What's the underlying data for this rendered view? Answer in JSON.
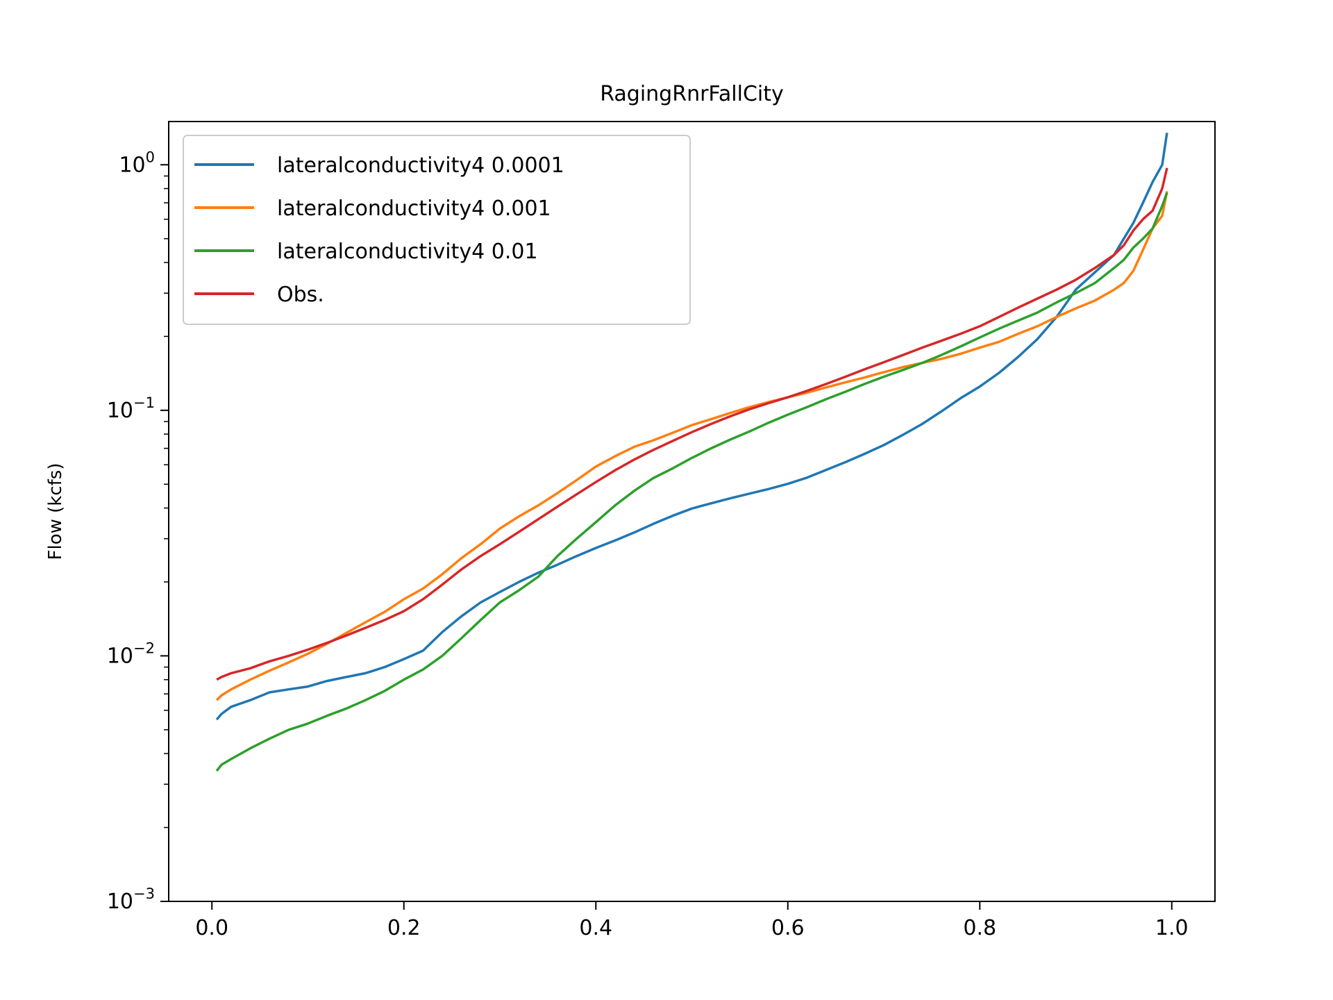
{
  "chart_data": {
    "type": "line",
    "title": "RagingRnrFallCity",
    "xlabel": "",
    "ylabel": "Flow (kcfs)",
    "xlim": [
      -0.045,
      1.045
    ],
    "ylim": [
      0.001,
      1.5
    ],
    "yscale": "log",
    "grid": false,
    "legend_position": "upper-left",
    "x_ticks": [
      {
        "value": 0.0,
        "label": "0.0"
      },
      {
        "value": 0.2,
        "label": "0.2"
      },
      {
        "value": 0.4,
        "label": "0.4"
      },
      {
        "value": 0.6,
        "label": "0.6"
      },
      {
        "value": 0.8,
        "label": "0.8"
      },
      {
        "value": 1.0,
        "label": "1.0"
      }
    ],
    "y_ticks": [
      {
        "value": 1.0,
        "base": "10",
        "exponent": "0"
      },
      {
        "value": 0.1,
        "base": "10",
        "exponent": "−1"
      },
      {
        "value": 0.01,
        "base": "10",
        "exponent": "−2"
      },
      {
        "value": 0.001,
        "base": "10",
        "exponent": "−3"
      }
    ],
    "series": [
      {
        "name": "lateralconductivity4 0.0001",
        "color": "#1f77b4",
        "points": [
          [
            0.005,
            0.0055
          ],
          [
            0.01,
            0.0058
          ],
          [
            0.02,
            0.0062
          ],
          [
            0.04,
            0.0066
          ],
          [
            0.06,
            0.0071
          ],
          [
            0.08,
            0.0073
          ],
          [
            0.1,
            0.0075
          ],
          [
            0.12,
            0.0079
          ],
          [
            0.14,
            0.0082
          ],
          [
            0.16,
            0.0085
          ],
          [
            0.18,
            0.009
          ],
          [
            0.2,
            0.0097
          ],
          [
            0.22,
            0.0105
          ],
          [
            0.24,
            0.0125
          ],
          [
            0.26,
            0.0145
          ],
          [
            0.28,
            0.0165
          ],
          [
            0.3,
            0.0182
          ],
          [
            0.32,
            0.02
          ],
          [
            0.34,
            0.0218
          ],
          [
            0.36,
            0.0235
          ],
          [
            0.38,
            0.0255
          ],
          [
            0.4,
            0.0275
          ],
          [
            0.42,
            0.0295
          ],
          [
            0.44,
            0.0318
          ],
          [
            0.46,
            0.0345
          ],
          [
            0.48,
            0.0372
          ],
          [
            0.5,
            0.0398
          ],
          [
            0.52,
            0.0418
          ],
          [
            0.54,
            0.0438
          ],
          [
            0.56,
            0.0458
          ],
          [
            0.58,
            0.0478
          ],
          [
            0.6,
            0.0502
          ],
          [
            0.62,
            0.0532
          ],
          [
            0.64,
            0.0572
          ],
          [
            0.66,
            0.0615
          ],
          [
            0.68,
            0.0665
          ],
          [
            0.7,
            0.0722
          ],
          [
            0.72,
            0.0795
          ],
          [
            0.74,
            0.088
          ],
          [
            0.76,
            0.099
          ],
          [
            0.78,
            0.112
          ],
          [
            0.8,
            0.125
          ],
          [
            0.82,
            0.142
          ],
          [
            0.84,
            0.165
          ],
          [
            0.86,
            0.195
          ],
          [
            0.88,
            0.24
          ],
          [
            0.9,
            0.31
          ],
          [
            0.92,
            0.365
          ],
          [
            0.94,
            0.43
          ],
          [
            0.95,
            0.5
          ],
          [
            0.96,
            0.58
          ],
          [
            0.97,
            0.7
          ],
          [
            0.98,
            0.85
          ],
          [
            0.99,
            1.0
          ],
          [
            0.995,
            1.35
          ]
        ]
      },
      {
        "name": "lateralconductivity4 0.001",
        "color": "#ff7f0e",
        "points": [
          [
            0.005,
            0.0066
          ],
          [
            0.01,
            0.0069
          ],
          [
            0.02,
            0.0073
          ],
          [
            0.04,
            0.008
          ],
          [
            0.06,
            0.0087
          ],
          [
            0.08,
            0.0094
          ],
          [
            0.1,
            0.0102
          ],
          [
            0.12,
            0.0112
          ],
          [
            0.14,
            0.0124
          ],
          [
            0.16,
            0.0137
          ],
          [
            0.18,
            0.0151
          ],
          [
            0.2,
            0.017
          ],
          [
            0.22,
            0.0188
          ],
          [
            0.24,
            0.0215
          ],
          [
            0.26,
            0.025
          ],
          [
            0.28,
            0.0285
          ],
          [
            0.3,
            0.033
          ],
          [
            0.32,
            0.037
          ],
          [
            0.34,
            0.041
          ],
          [
            0.36,
            0.046
          ],
          [
            0.38,
            0.052
          ],
          [
            0.4,
            0.059
          ],
          [
            0.42,
            0.065
          ],
          [
            0.44,
            0.071
          ],
          [
            0.46,
            0.0755
          ],
          [
            0.48,
            0.081
          ],
          [
            0.5,
            0.087
          ],
          [
            0.52,
            0.092
          ],
          [
            0.54,
            0.0975
          ],
          [
            0.56,
            0.103
          ],
          [
            0.58,
            0.108
          ],
          [
            0.6,
            0.113
          ],
          [
            0.62,
            0.118
          ],
          [
            0.64,
            0.124
          ],
          [
            0.66,
            0.13
          ],
          [
            0.68,
            0.136
          ],
          [
            0.7,
            0.143
          ],
          [
            0.72,
            0.15
          ],
          [
            0.74,
            0.156
          ],
          [
            0.76,
            0.162
          ],
          [
            0.78,
            0.17
          ],
          [
            0.8,
            0.18
          ],
          [
            0.82,
            0.19
          ],
          [
            0.84,
            0.205
          ],
          [
            0.86,
            0.22
          ],
          [
            0.88,
            0.24
          ],
          [
            0.9,
            0.26
          ],
          [
            0.92,
            0.28
          ],
          [
            0.94,
            0.31
          ],
          [
            0.95,
            0.33
          ],
          [
            0.96,
            0.37
          ],
          [
            0.97,
            0.45
          ],
          [
            0.98,
            0.55
          ],
          [
            0.99,
            0.62
          ],
          [
            0.995,
            0.78
          ]
        ]
      },
      {
        "name": "lateralconductivity4 0.01",
        "color": "#2ca02c",
        "points": [
          [
            0.005,
            0.0034
          ],
          [
            0.01,
            0.0036
          ],
          [
            0.02,
            0.0038
          ],
          [
            0.04,
            0.0042
          ],
          [
            0.06,
            0.0046
          ],
          [
            0.08,
            0.005
          ],
          [
            0.1,
            0.0053
          ],
          [
            0.12,
            0.0057
          ],
          [
            0.14,
            0.0061
          ],
          [
            0.16,
            0.0066
          ],
          [
            0.18,
            0.0072
          ],
          [
            0.2,
            0.008
          ],
          [
            0.22,
            0.0088
          ],
          [
            0.24,
            0.01
          ],
          [
            0.26,
            0.0118
          ],
          [
            0.28,
            0.014
          ],
          [
            0.3,
            0.0165
          ],
          [
            0.32,
            0.0185
          ],
          [
            0.34,
            0.021
          ],
          [
            0.36,
            0.0255
          ],
          [
            0.38,
            0.03
          ],
          [
            0.4,
            0.035
          ],
          [
            0.42,
            0.041
          ],
          [
            0.44,
            0.047
          ],
          [
            0.46,
            0.053
          ],
          [
            0.48,
            0.058
          ],
          [
            0.5,
            0.064
          ],
          [
            0.52,
            0.07
          ],
          [
            0.54,
            0.076
          ],
          [
            0.56,
            0.082
          ],
          [
            0.58,
            0.089
          ],
          [
            0.6,
            0.096
          ],
          [
            0.62,
            0.103
          ],
          [
            0.64,
            0.111
          ],
          [
            0.66,
            0.119
          ],
          [
            0.68,
            0.128
          ],
          [
            0.7,
            0.137
          ],
          [
            0.72,
            0.146
          ],
          [
            0.74,
            0.156
          ],
          [
            0.76,
            0.168
          ],
          [
            0.78,
            0.182
          ],
          [
            0.8,
            0.198
          ],
          [
            0.82,
            0.215
          ],
          [
            0.84,
            0.232
          ],
          [
            0.86,
            0.25
          ],
          [
            0.88,
            0.275
          ],
          [
            0.9,
            0.3
          ],
          [
            0.92,
            0.33
          ],
          [
            0.94,
            0.38
          ],
          [
            0.95,
            0.41
          ],
          [
            0.96,
            0.46
          ],
          [
            0.97,
            0.5
          ],
          [
            0.98,
            0.55
          ],
          [
            0.99,
            0.68
          ],
          [
            0.995,
            0.77
          ]
        ]
      },
      {
        "name": "Obs.",
        "color": "#d62728",
        "points": [
          [
            0.005,
            0.008
          ],
          [
            0.01,
            0.0082
          ],
          [
            0.02,
            0.0085
          ],
          [
            0.04,
            0.0089
          ],
          [
            0.06,
            0.0095
          ],
          [
            0.08,
            0.01
          ],
          [
            0.1,
            0.0106
          ],
          [
            0.12,
            0.0113
          ],
          [
            0.14,
            0.0121
          ],
          [
            0.16,
            0.013
          ],
          [
            0.18,
            0.014
          ],
          [
            0.2,
            0.0152
          ],
          [
            0.22,
            0.017
          ],
          [
            0.24,
            0.0195
          ],
          [
            0.26,
            0.0225
          ],
          [
            0.28,
            0.0255
          ],
          [
            0.3,
            0.0285
          ],
          [
            0.32,
            0.032
          ],
          [
            0.34,
            0.036
          ],
          [
            0.36,
            0.0405
          ],
          [
            0.38,
            0.0455
          ],
          [
            0.4,
            0.051
          ],
          [
            0.42,
            0.057
          ],
          [
            0.44,
            0.063
          ],
          [
            0.46,
            0.069
          ],
          [
            0.48,
            0.075
          ],
          [
            0.5,
            0.0815
          ],
          [
            0.52,
            0.088
          ],
          [
            0.54,
            0.0945
          ],
          [
            0.56,
            0.101
          ],
          [
            0.58,
            0.107
          ],
          [
            0.6,
            0.113
          ],
          [
            0.62,
            0.12
          ],
          [
            0.64,
            0.128
          ],
          [
            0.66,
            0.137
          ],
          [
            0.68,
            0.147
          ],
          [
            0.7,
            0.157
          ],
          [
            0.72,
            0.168
          ],
          [
            0.74,
            0.18
          ],
          [
            0.76,
            0.192
          ],
          [
            0.78,
            0.205
          ],
          [
            0.8,
            0.22
          ],
          [
            0.82,
            0.24
          ],
          [
            0.84,
            0.262
          ],
          [
            0.86,
            0.285
          ],
          [
            0.88,
            0.31
          ],
          [
            0.9,
            0.34
          ],
          [
            0.92,
            0.38
          ],
          [
            0.94,
            0.43
          ],
          [
            0.95,
            0.47
          ],
          [
            0.96,
            0.54
          ],
          [
            0.97,
            0.6
          ],
          [
            0.98,
            0.65
          ],
          [
            0.99,
            0.8
          ],
          [
            0.995,
            0.97
          ]
        ]
      }
    ]
  }
}
